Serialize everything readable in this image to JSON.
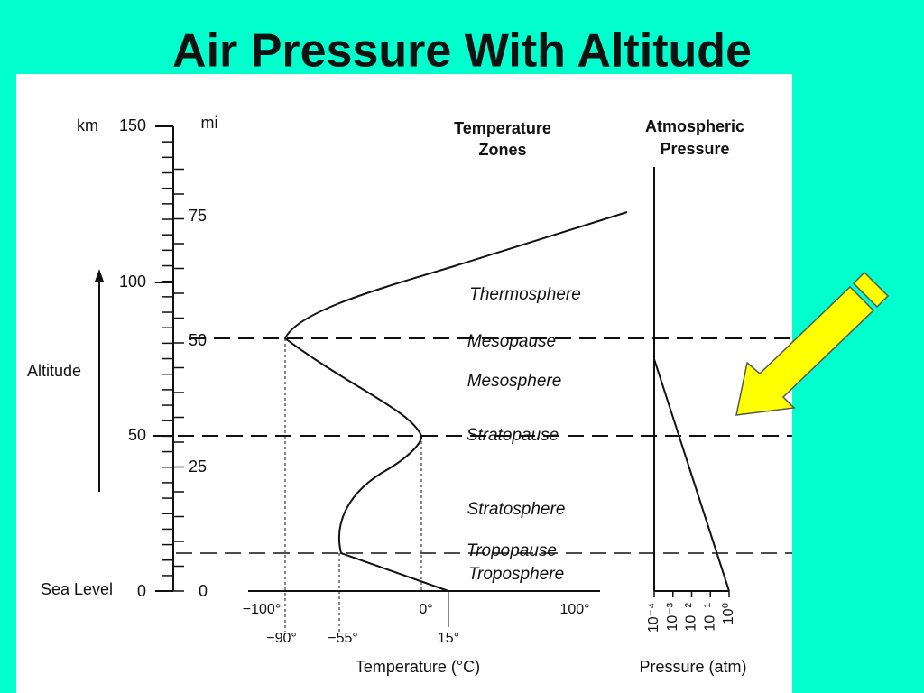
{
  "title": "Air Pressure With Altitude",
  "diagram": {
    "altitude_axis": {
      "unit_km": "km",
      "unit_mi": "mi",
      "km_labels": [
        "150",
        "100",
        "50",
        "0"
      ],
      "mi_labels": [
        "75",
        "50",
        "25",
        "0"
      ],
      "label": "Altitude",
      "sea_level": "Sea Level"
    },
    "temperature_axis": {
      "top_labels": [
        "−100°",
        "0°",
        "100°"
      ],
      "bottom_labels": [
        "−90°",
        "−55°",
        "15°"
      ],
      "title": "Temperature (°C)"
    },
    "zones": {
      "header": [
        "Temperature",
        "Zones"
      ],
      "labels": [
        "Thermosphere",
        "Mesopause",
        "Mesosphere",
        "Stratopause",
        "Stratosphere",
        "Tropopause",
        "Troposphere"
      ]
    },
    "pressure": {
      "header": [
        "Atmospheric",
        "Pressure"
      ],
      "ticks": [
        "10⁻⁴",
        "10⁻³",
        "10⁻²",
        "10⁻¹",
        "10⁰"
      ],
      "title": "Pressure (atm)"
    }
  }
}
